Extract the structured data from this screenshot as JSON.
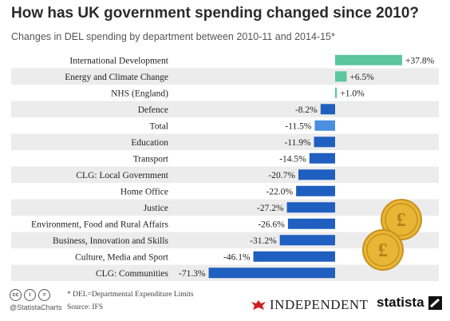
{
  "header": {
    "title": "How has UK government spending changed since 2010?",
    "subtitle": "Changes in DEL spending by department between 2010-11 and 2014-15*"
  },
  "chart_data": {
    "type": "bar",
    "orientation": "horizontal",
    "categories": [
      "International Development",
      "Energy and Climate Change",
      "NHS (England)",
      "Defence",
      "Total",
      "Education",
      "Transport",
      "CLG: Local Government",
      "Home Office",
      "Justice",
      "Environment, Food and Rural Affairs",
      "Business, Innovation and Skills",
      "Culture, Media and Sport",
      "CLG: Communities"
    ],
    "values": [
      37.8,
      6.5,
      1.0,
      -8.2,
      -11.5,
      -11.9,
      -14.5,
      -20.7,
      -22.0,
      -27.2,
      -26.6,
      -31.2,
      -46.1,
      -71.3
    ],
    "value_labels": [
      "+37.8%",
      "+6.5%",
      "+1.0%",
      "-8.2%",
      "-11.5%",
      "-11.9%",
      "-14.5%",
      "-20.7%",
      "-22.0%",
      "-27.2%",
      "-26.6%",
      "-31.2%",
      "-46.1%",
      "-71.3%"
    ],
    "highlight_category": "Total",
    "colors": {
      "positive": "#5cc6a0",
      "negative": "#1f5fbf",
      "total": "#4a8fe0",
      "row_stripe": "#ececec"
    },
    "xlim": [
      -71.3,
      37.8
    ],
    "grid": false
  },
  "footer": {
    "cc_icons": [
      "cc",
      "i",
      "="
    ],
    "handle": "@StatistaCharts",
    "note": "* DEL=Departmental Expenditure Limits",
    "source": "Source: IFS",
    "independent_logo": "INDEPENDENT",
    "statista_logo": "statista"
  }
}
